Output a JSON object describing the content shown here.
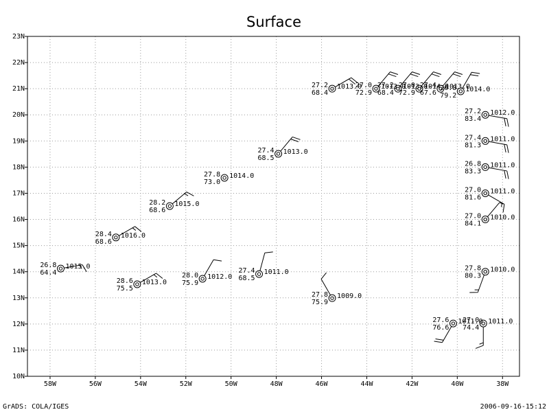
{
  "chart_data": {
    "type": "station",
    "title": "Surface",
    "footer_left": "GrADS: COLA/IGES",
    "footer_right": "2006-09-16-15:12",
    "xlim": [
      -59,
      -37.25
    ],
    "ylim": [
      10,
      23
    ],
    "grid": true,
    "xticks": [
      {
        "value": -58,
        "label": "58W"
      },
      {
        "value": -56,
        "label": "56W"
      },
      {
        "value": -54,
        "label": "54W"
      },
      {
        "value": -52,
        "label": "52W"
      },
      {
        "value": -50,
        "label": "50W"
      },
      {
        "value": -48,
        "label": "48W"
      },
      {
        "value": -46,
        "label": "46W"
      },
      {
        "value": -44,
        "label": "44W"
      },
      {
        "value": -42,
        "label": "42W"
      },
      {
        "value": -40,
        "label": "40W"
      },
      {
        "value": -38,
        "label": "38W"
      }
    ],
    "yticks": [
      {
        "value": 10,
        "label": "10N"
      },
      {
        "value": 11,
        "label": "11N"
      },
      {
        "value": 12,
        "label": "12N"
      },
      {
        "value": 13,
        "label": "13N"
      },
      {
        "value": 14,
        "label": "14N"
      },
      {
        "value": 15,
        "label": "15N"
      },
      {
        "value": 16,
        "label": "16N"
      },
      {
        "value": 17,
        "label": "17N"
      },
      {
        "value": 18,
        "label": "18N"
      },
      {
        "value": 19,
        "label": "19N"
      },
      {
        "value": 20,
        "label": "20N"
      },
      {
        "value": 21,
        "label": "21N"
      },
      {
        "value": 22,
        "label": "22N"
      },
      {
        "value": 23,
        "label": "23N"
      }
    ],
    "stations": [
      {
        "lon": -57.53,
        "lat": 14.12,
        "temp": "26.8",
        "dew": "64.4",
        "pressure": "1015.0",
        "wind_dir": 80,
        "wind_speed": 15
      },
      {
        "lon": -55.09,
        "lat": 15.31,
        "temp": "28.4",
        "dew": "68.6",
        "pressure": "1016.0",
        "wind_dir": 60,
        "wind_speed": 15
      },
      {
        "lon": -54.15,
        "lat": 13.52,
        "temp": "28.6",
        "dew": "75.5",
        "pressure": "1013.0",
        "wind_dir": 60,
        "wind_speed": 15
      },
      {
        "lon": -52.71,
        "lat": 16.51,
        "temp": "28.2",
        "dew": "68.6",
        "pressure": "1015.0",
        "wind_dir": 50,
        "wind_speed": 15
      },
      {
        "lon": -51.26,
        "lat": 13.73,
        "temp": "28.0",
        "dew": "75.9",
        "pressure": "1012.0",
        "wind_dir": 30,
        "wind_speed": 10
      },
      {
        "lon": -50.29,
        "lat": 17.59,
        "temp": "27.8",
        "dew": "73.0",
        "pressure": "1014.0",
        "wind_dir": 0,
        "wind_speed": 0
      },
      {
        "lon": -48.76,
        "lat": 13.91,
        "temp": "27.4",
        "dew": "68.5",
        "pressure": "1011.0",
        "wind_dir": 15,
        "wind_speed": 10
      },
      {
        "lon": -47.91,
        "lat": 18.51,
        "temp": "27.4",
        "dew": "68.5",
        "pressure": "1013.0",
        "wind_dir": 40,
        "wind_speed": 20
      },
      {
        "lon": -45.53,
        "lat": 12.99,
        "temp": "27.8",
        "dew": "75.9",
        "pressure": "1009.0",
        "wind_dir": 330,
        "wind_speed": 10
      },
      {
        "lon": -45.53,
        "lat": 21.0,
        "temp": "27.2",
        "dew": "68.4",
        "pressure": "1013.0",
        "wind_dir": 60,
        "wind_speed": 20
      },
      {
        "lon": -43.59,
        "lat": 21.0,
        "temp": "27.0",
        "dew": "72.9",
        "pressure": "1013.0",
        "wind_dir": 40,
        "wind_speed": 20
      },
      {
        "lon": -42.62,
        "lat": 21.0,
        "temp": "27.2",
        "dew": "68.4",
        "pressure": "1013.0",
        "wind_dir": 40,
        "wind_speed": 20
      },
      {
        "lon": -41.68,
        "lat": 21.0,
        "temp": "27.0",
        "dew": "72.9",
        "pressure": "1014.0",
        "wind_dir": 40,
        "wind_speed": 20
      },
      {
        "lon": -40.74,
        "lat": 21.0,
        "temp": "27.4",
        "dew": "67.6",
        "pressure": "1013.0",
        "wind_dir": 40,
        "wind_speed": 20
      },
      {
        "lon": -39.85,
        "lat": 20.9,
        "temp": "26.8",
        "dew": "79.2",
        "pressure": "1014.0",
        "wind_dir": 30,
        "wind_speed": 20
      },
      {
        "lon": -38.76,
        "lat": 20.0,
        "temp": "27.2",
        "dew": "83.4",
        "pressure": "1012.0",
        "wind_dir": 100,
        "wind_speed": 20
      },
      {
        "lon": -38.76,
        "lat": 19.0,
        "temp": "27.4",
        "dew": "81.3",
        "pressure": "1011.0",
        "wind_dir": 100,
        "wind_speed": 20
      },
      {
        "lon": -38.76,
        "lat": 18.0,
        "temp": "26.8",
        "dew": "83.3",
        "pressure": "1011.0",
        "wind_dir": 100,
        "wind_speed": 20
      },
      {
        "lon": -38.76,
        "lat": 17.0,
        "temp": "27.0",
        "dew": "81.6",
        "pressure": "1011.0",
        "wind_dir": 120,
        "wind_speed": 15
      },
      {
        "lon": -38.76,
        "lat": 16.0,
        "temp": "27.0",
        "dew": "84.1",
        "pressure": "1010.0",
        "wind_dir": 40,
        "wind_speed": 5
      },
      {
        "lon": -38.76,
        "lat": 14.0,
        "temp": "27.8",
        "dew": "80.3",
        "pressure": "1010.0",
        "wind_dir": 200,
        "wind_speed": 15
      },
      {
        "lon": -40.18,
        "lat": 12.02,
        "temp": "27.6",
        "dew": "76.6",
        "pressure": "1011.0",
        "wind_dir": 210,
        "wind_speed": 20
      },
      {
        "lon": -38.85,
        "lat": 12.02,
        "temp": "27.0",
        "dew": "74.4",
        "pressure": "1011.0",
        "wind_dir": 180,
        "wind_speed": 15
      }
    ]
  }
}
